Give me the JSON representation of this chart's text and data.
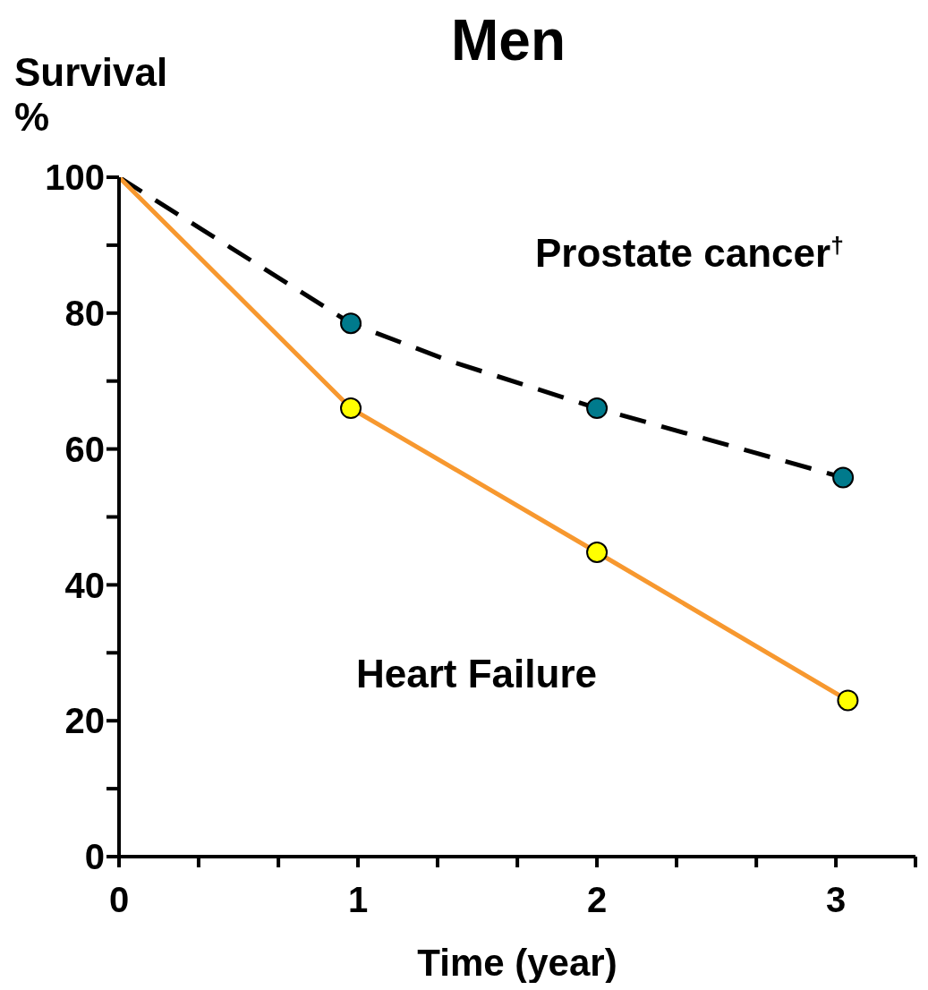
{
  "chart_data": {
    "type": "line",
    "title": "Men",
    "xlabel": "Time (year)",
    "ylabel": "Survival\n%",
    "xlim": [
      0,
      3.333
    ],
    "xticks": [
      0,
      {
        "value": 0.333,
        "label": null
      },
      {
        "value": 0.667,
        "label": null
      },
      1,
      {
        "value": 1.333,
        "label": null
      },
      {
        "value": 1.667,
        "label": null
      },
      2,
      {
        "value": 2.333,
        "label": null
      },
      {
        "value": 2.667,
        "label": null
      },
      3,
      {
        "value": 3.333,
        "label": null
      }
    ],
    "ylim": [
      0,
      100
    ],
    "yticks": [
      0,
      {
        "value": 10,
        "label": null
      },
      20,
      {
        "value": 30,
        "label": null
      },
      40,
      {
        "value": 50,
        "label": null
      },
      60,
      {
        "value": 70,
        "label": null
      },
      80,
      {
        "value": 90,
        "label": null
      },
      100
    ],
    "series": [
      {
        "name": "Prostate cancer$^{†}$",
        "line_style": "dashed",
        "color": "#000000",
        "x": [
          0,
          0.97,
          1.38,
          2,
          3.03
        ],
        "values": [
          100,
          78.5,
          73,
          66,
          55.8
        ]
      },
      {
        "name": "Heart Failure",
        "line_style": "solid",
        "color": "#f7982f",
        "x": [
          0,
          0.97,
          2,
          3.05
        ],
        "values": [
          100,
          66,
          44.8,
          23
        ]
      },
      {
        "type": "scatter",
        "marker": "circle",
        "color": "#007a8c",
        "x": [
          0.97,
          2,
          3.03
        ],
        "values": [
          78.5,
          66,
          55.8
        ]
      },
      {
        "type": "scatter",
        "marker": "circle",
        "color": "#ffff00",
        "x": [
          0.97,
          2,
          3.05
        ],
        "values": [
          66,
          44.8,
          23
        ]
      }
    ]
  }
}
